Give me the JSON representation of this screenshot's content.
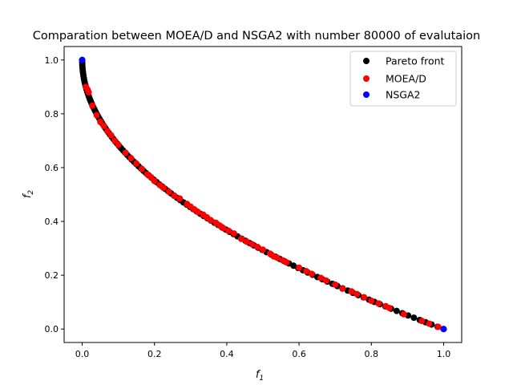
{
  "chart_data": {
    "type": "scatter",
    "title": "Comparation between MOEA/D and NSGA2 with number 80000 of evalutaion",
    "xlabel_main": "f",
    "xlabel_sub": "1",
    "ylabel_main": "f",
    "ylabel_sub": "2",
    "xlim": [
      -0.05,
      1.05
    ],
    "ylim": [
      -0.05,
      1.05
    ],
    "xticks": [
      0.0,
      0.2,
      0.4,
      0.6,
      0.8,
      1.0
    ],
    "yticks": [
      0.0,
      0.2,
      0.4,
      0.6,
      0.8,
      1.0
    ],
    "xtick_labels": [
      "0.0",
      "0.2",
      "0.4",
      "0.6",
      "0.8",
      "1.0"
    ],
    "ytick_labels": [
      "0.0",
      "0.2",
      "0.4",
      "0.6",
      "0.8",
      "1.0"
    ],
    "grid": false,
    "legend_position": "top-right",
    "series": [
      {
        "name": "Pareto front",
        "color": "#000000",
        "curve": "1 - sqrt(f1)",
        "x_range": [
          0.0,
          1.0
        ],
        "sample_count": 120
      },
      {
        "name": "MOEA/D",
        "color": "#ff0000",
        "points": [
          [
            0.01,
            0.9
          ],
          [
            0.015,
            0.89
          ],
          [
            0.018,
            0.88
          ],
          [
            0.028,
            0.83
          ],
          [
            0.04,
            0.795
          ],
          [
            0.05,
            0.77
          ],
          [
            0.06,
            0.755
          ],
          [
            0.07,
            0.735
          ],
          [
            0.08,
            0.72
          ],
          [
            0.09,
            0.7
          ],
          [
            0.1,
            0.685
          ],
          [
            0.12,
            0.655
          ],
          [
            0.135,
            0.635
          ],
          [
            0.15,
            0.615
          ],
          [
            0.165,
            0.595
          ],
          [
            0.18,
            0.575
          ],
          [
            0.19,
            0.565
          ],
          [
            0.2,
            0.55
          ],
          [
            0.215,
            0.535
          ],
          [
            0.225,
            0.525
          ],
          [
            0.24,
            0.51
          ],
          [
            0.255,
            0.495
          ],
          [
            0.27,
            0.485
          ],
          [
            0.29,
            0.465
          ],
          [
            0.3,
            0.455
          ],
          [
            0.31,
            0.445
          ],
          [
            0.32,
            0.435
          ],
          [
            0.335,
            0.425
          ],
          [
            0.345,
            0.415
          ],
          [
            0.355,
            0.405
          ],
          [
            0.37,
            0.395
          ],
          [
            0.38,
            0.385
          ],
          [
            0.39,
            0.375
          ],
          [
            0.405,
            0.365
          ],
          [
            0.42,
            0.355
          ],
          [
            0.44,
            0.335
          ],
          [
            0.455,
            0.325
          ],
          [
            0.47,
            0.315
          ],
          [
            0.485,
            0.305
          ],
          [
            0.5,
            0.295
          ],
          [
            0.52,
            0.28
          ],
          [
            0.53,
            0.27
          ],
          [
            0.54,
            0.265
          ],
          [
            0.555,
            0.255
          ],
          [
            0.565,
            0.248
          ],
          [
            0.6,
            0.228
          ],
          [
            0.62,
            0.215
          ],
          [
            0.635,
            0.205
          ],
          [
            0.66,
            0.19
          ],
          [
            0.675,
            0.18
          ],
          [
            0.7,
            0.165
          ],
          [
            0.72,
            0.15
          ],
          [
            0.745,
            0.14
          ],
          [
            0.76,
            0.13
          ],
          [
            0.78,
            0.118
          ],
          [
            0.8,
            0.105
          ],
          [
            0.82,
            0.095
          ],
          [
            0.84,
            0.085
          ],
          [
            0.85,
            0.078
          ],
          [
            0.89,
            0.055
          ],
          [
            0.94,
            0.03
          ],
          [
            0.96,
            0.02
          ],
          [
            0.985,
            0.008
          ]
        ]
      },
      {
        "name": "NSGA2",
        "color": "#0000ff",
        "points": [
          [
            0.0,
            1.0
          ],
          [
            1.0,
            0.0
          ]
        ]
      }
    ]
  }
}
